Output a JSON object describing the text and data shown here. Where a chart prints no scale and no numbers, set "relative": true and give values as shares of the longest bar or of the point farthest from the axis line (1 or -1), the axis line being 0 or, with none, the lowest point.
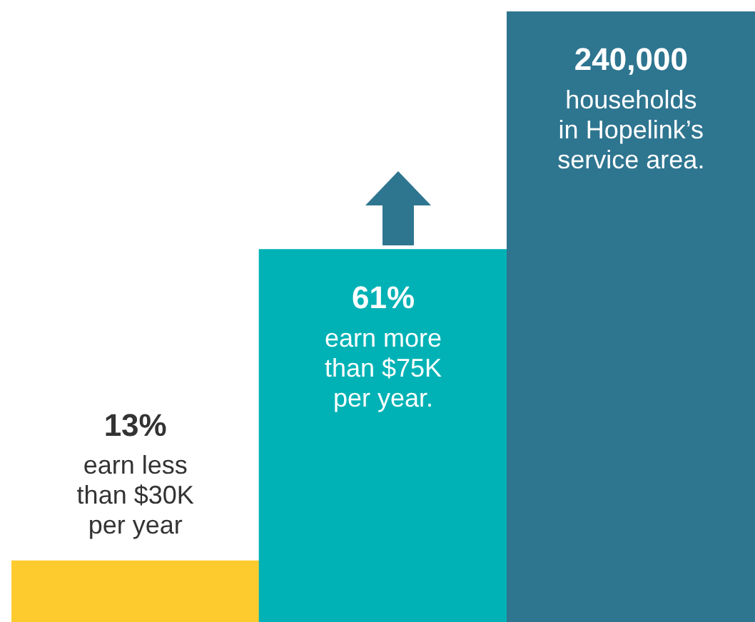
{
  "chart_data": {
    "type": "bar",
    "relative": true,
    "categories": [
      null,
      null,
      null
    ],
    "values": [
      0.1,
      0.61,
      1
    ],
    "colors": [
      "#fecb2f",
      "#00b2b5",
      "#2e7590"
    ],
    "annotations": [
      "13%\nearn less\nthan $30K\nper year",
      "61%\nearn more\nthan $75K\nper year.",
      "240,000\nhouseholds\nin Hopelink’s\nservice area."
    ]
  }
}
